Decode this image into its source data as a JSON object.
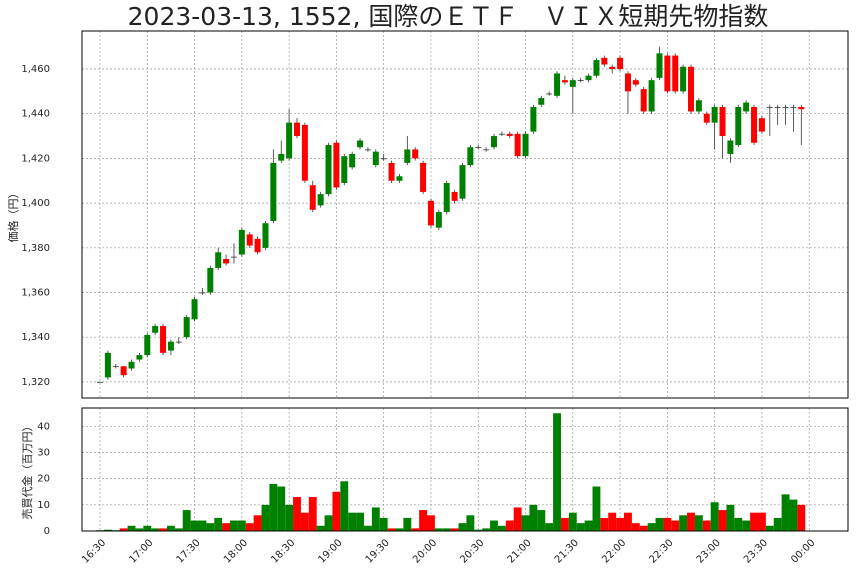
{
  "chart_data": {
    "type": "candlestick",
    "title": "2023-03-13, 1552, 国際のＥＴＦ　ＶＩＸ短期先物指数",
    "ylabel": "価格（円）",
    "volume_ylabel": "売買代金（百万円）",
    "up_color": "#008000",
    "down_color": "#ff0000",
    "grid": true,
    "x": [
      "16:30",
      "16:35",
      "16:40",
      "16:45",
      "16:50",
      "16:55",
      "17:00",
      "17:05",
      "17:10",
      "17:15",
      "17:20",
      "17:25",
      "17:30",
      "17:35",
      "17:40",
      "17:45",
      "17:50",
      "17:55",
      "18:00",
      "18:05",
      "18:10",
      "18:15",
      "18:20",
      "18:25",
      "18:30",
      "18:35",
      "18:40",
      "18:45",
      "18:50",
      "18:55",
      "19:00",
      "19:05",
      "19:10",
      "19:15",
      "19:20",
      "19:25",
      "19:30",
      "19:35",
      "19:40",
      "19:45",
      "19:50",
      "19:55",
      "20:00",
      "20:05",
      "20:10",
      "20:15",
      "20:20",
      "20:25",
      "20:30",
      "20:35",
      "20:40",
      "20:45",
      "20:50",
      "20:55",
      "21:00",
      "21:05",
      "21:10",
      "21:15",
      "21:20",
      "21:25",
      "21:30",
      "21:35",
      "21:40",
      "21:45",
      "21:50",
      "21:55",
      "22:00",
      "22:05",
      "22:10",
      "22:15",
      "22:20",
      "22:25",
      "22:30",
      "22:35",
      "22:40",
      "22:45",
      "22:50",
      "22:55",
      "23:00",
      "23:05",
      "23:10",
      "23:15",
      "23:20",
      "23:25",
      "23:30",
      "23:35",
      "23:40",
      "23:45",
      "23:50",
      "23:55"
    ],
    "open": [
      1320,
      1322,
      1327,
      1327,
      1326,
      1330,
      1332,
      1342,
      1345,
      1334,
      1338,
      1340,
      1348,
      1360,
      1360,
      1371,
      1375,
      1376,
      1377,
      1386,
      1384,
      1380,
      1392,
      1419,
      1420,
      1436,
      1435,
      1408,
      1399,
      1404,
      1427,
      1409,
      1416,
      1425,
      1424,
      1417,
      1420,
      1418,
      1410,
      1418,
      1424,
      1418,
      1401,
      1389,
      1396,
      1405,
      1402,
      1417,
      1425,
      1424,
      1425,
      1431,
      1431,
      1431,
      1421,
      1432,
      1444,
      1449,
      1448,
      1455,
      1452,
      1455,
      1455,
      1457,
      1465,
      1461,
      1465,
      1458,
      1455,
      1451,
      1441,
      1456,
      1466,
      1466,
      1450,
      1461,
      1441,
      1440,
      1436,
      1443,
      1422,
      1426,
      1441,
      1443,
      1438,
      1443,
      1443,
      1443,
      1443,
      1443
    ],
    "high": [
      1320,
      1334,
      1328,
      1327,
      1330,
      1333,
      1342,
      1346,
      1346,
      1339,
      1340,
      1350,
      1358,
      1362,
      1372,
      1380,
      1377,
      1382,
      1389,
      1387,
      1385,
      1392,
      1424,
      1428,
      1442,
      1438,
      1436,
      1410,
      1405,
      1427,
      1428,
      1422,
      1423,
      1429,
      1425,
      1424,
      1422,
      1419,
      1413,
      1430,
      1425,
      1419,
      1402,
      1397,
      1410,
      1406,
      1418,
      1426,
      1426,
      1425,
      1431,
      1432,
      1432,
      1432,
      1432,
      1444,
      1448,
      1450,
      1459,
      1457,
      1456,
      1456,
      1458,
      1465,
      1466,
      1462,
      1466,
      1459,
      1456,
      1452,
      1456,
      1470,
      1467,
      1467,
      1462,
      1462,
      1447,
      1441,
      1444,
      1444,
      1429,
      1444,
      1446,
      1444,
      1439,
      1444,
      1444,
      1444,
      1444,
      1444
    ],
    "low": [
      1320,
      1321,
      1326,
      1322,
      1325,
      1329,
      1331,
      1341,
      1332,
      1332,
      1337,
      1339,
      1347,
      1359,
      1359,
      1370,
      1372,
      1373,
      1376,
      1380,
      1377,
      1379,
      1391,
      1418,
      1419,
      1429,
      1409,
      1396,
      1398,
      1403,
      1406,
      1408,
      1415,
      1424,
      1423,
      1416,
      1419,
      1409,
      1409,
      1417,
      1419,
      1404,
      1389,
      1388,
      1395,
      1400,
      1401,
      1416,
      1424,
      1423,
      1424,
      1430,
      1429,
      1420,
      1420,
      1431,
      1443,
      1448,
      1447,
      1453,
      1440,
      1454,
      1454,
      1456,
      1461,
      1458,
      1459,
      1440,
      1452,
      1440,
      1440,
      1455,
      1449,
      1449,
      1449,
      1440,
      1440,
      1435,
      1424,
      1420,
      1418,
      1425,
      1440,
      1426,
      1431,
      1430,
      1435,
      1435,
      1432,
      1426
    ],
    "close": [
      1320,
      1333,
      1327,
      1323,
      1329,
      1332,
      1341,
      1345,
      1333,
      1338,
      1338,
      1349,
      1357,
      1360,
      1371,
      1378,
      1373,
      1376,
      1388,
      1381,
      1378,
      1391,
      1418,
      1422,
      1436,
      1430,
      1410,
      1397,
      1404,
      1426,
      1407,
      1421,
      1422,
      1428,
      1424,
      1423,
      1420,
      1410,
      1412,
      1424,
      1420,
      1405,
      1390,
      1396,
      1409,
      1401,
      1417,
      1425,
      1425,
      1424,
      1430,
      1431,
      1430,
      1421,
      1431,
      1443,
      1447,
      1449,
      1458,
      1454,
      1455,
      1455,
      1457,
      1464,
      1462,
      1460,
      1460,
      1450,
      1453,
      1441,
      1455,
      1467,
      1450,
      1450,
      1461,
      1441,
      1446,
      1436,
      1443,
      1430,
      1428,
      1443,
      1445,
      1427,
      1432,
      1443,
      1443,
      1443,
      1443,
      1442
    ],
    "volume": [
      0.3,
      0.5,
      0.3,
      1,
      2,
      1,
      2,
      1,
      1,
      2,
      1,
      8,
      4,
      4,
      3,
      5,
      3,
      4,
      4,
      3,
      6,
      10,
      18,
      17,
      10,
      13,
      7,
      13,
      2,
      6,
      15,
      19,
      7,
      7,
      2,
      9,
      5,
      1,
      1,
      5,
      1,
      8,
      6,
      1,
      1,
      1,
      3,
      6,
      0.5,
      1,
      4,
      2,
      4,
      9,
      6,
      10,
      8,
      3,
      45,
      5,
      7,
      3,
      4,
      17,
      5,
      7,
      5,
      7,
      3,
      2,
      3,
      5,
      5,
      4,
      6,
      7,
      6,
      4,
      11,
      8,
      10,
      5,
      4,
      7,
      7,
      2,
      5,
      14,
      12,
      10
    ],
    "ylim": [
      1312.8,
      1477
    ],
    "yticks": [
      {
        "value": 1320,
        "label": "1,320"
      },
      {
        "value": 1340,
        "label": "1,340"
      },
      {
        "value": 1360,
        "label": "1,360"
      },
      {
        "value": 1380,
        "label": "1,380"
      },
      {
        "value": 1400,
        "label": "1,400"
      },
      {
        "value": 1420,
        "label": "1,420"
      },
      {
        "value": 1440,
        "label": "1,440"
      },
      {
        "value": 1460,
        "label": "1,460"
      }
    ],
    "volume_ylim": [
      0,
      47
    ],
    "volume_yticks": [
      0,
      10,
      20,
      30,
      40
    ],
    "xticks": [
      "16:30",
      "17:00",
      "17:30",
      "18:00",
      "18:30",
      "19:00",
      "19:30",
      "20:00",
      "20:30",
      "21:00",
      "21:30",
      "22:00",
      "22:30",
      "23:00",
      "23:30",
      "00:00"
    ]
  }
}
